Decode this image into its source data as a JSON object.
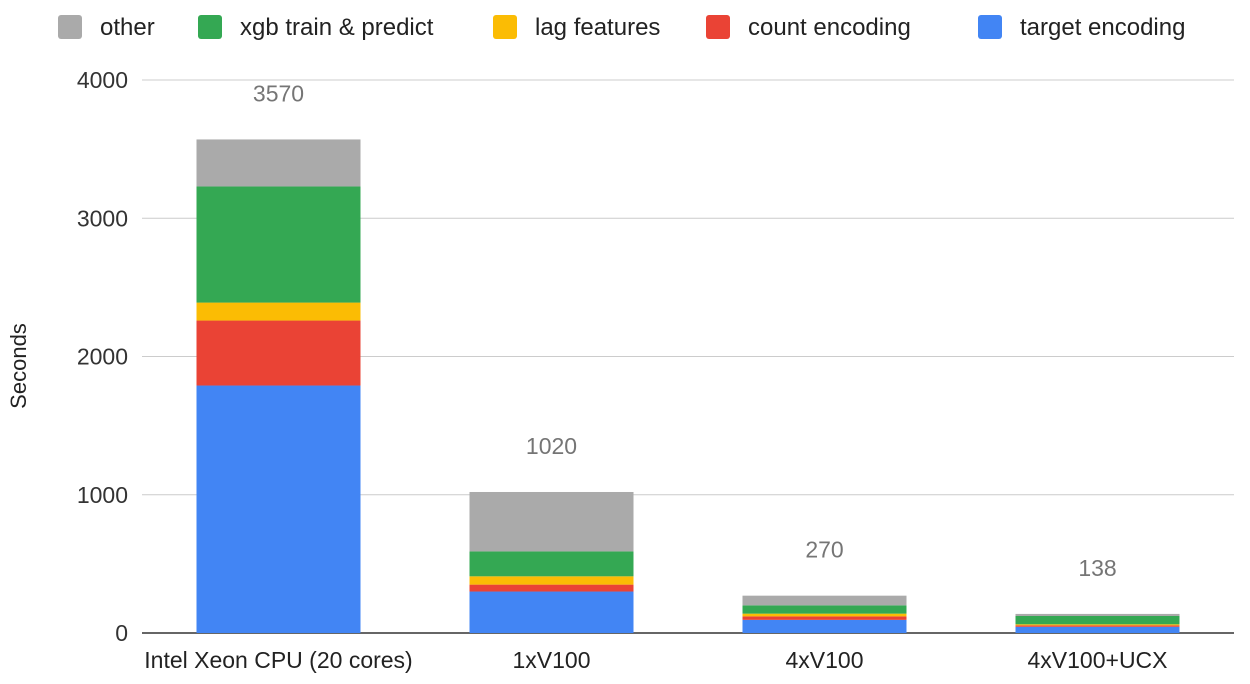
{
  "chart_data": {
    "type": "bar",
    "stacked": true,
    "title": "",
    "xlabel": "",
    "ylabel": "Seconds",
    "ylim": [
      0,
      4000
    ],
    "yticks": [
      0,
      1000,
      2000,
      3000,
      4000
    ],
    "grid": true,
    "legend_position": "top",
    "categories": [
      "Intel Xeon CPU (20 cores)",
      "1xV100",
      "4xV100",
      "4xV100+UCX"
    ],
    "totals": [
      3570,
      1020,
      270,
      138
    ],
    "series": [
      {
        "name": "target encoding",
        "color": "#4285f4",
        "values": [
          1790,
          300,
          95,
          45
        ]
      },
      {
        "name": "count encoding",
        "color": "#ea4335",
        "values": [
          470,
          50,
          25,
          10
        ]
      },
      {
        "name": "lag features",
        "color": "#fbbc04",
        "values": [
          130,
          60,
          20,
          8
        ]
      },
      {
        "name": "xgb train & predict",
        "color": "#34a853",
        "values": [
          840,
          180,
          60,
          60
        ]
      },
      {
        "name": "other",
        "color": "#aaaaaa",
        "values": [
          340,
          430,
          70,
          15
        ]
      }
    ],
    "legend_order": [
      "other",
      "xgb train & predict",
      "lag features",
      "count encoding",
      "target encoding"
    ]
  }
}
